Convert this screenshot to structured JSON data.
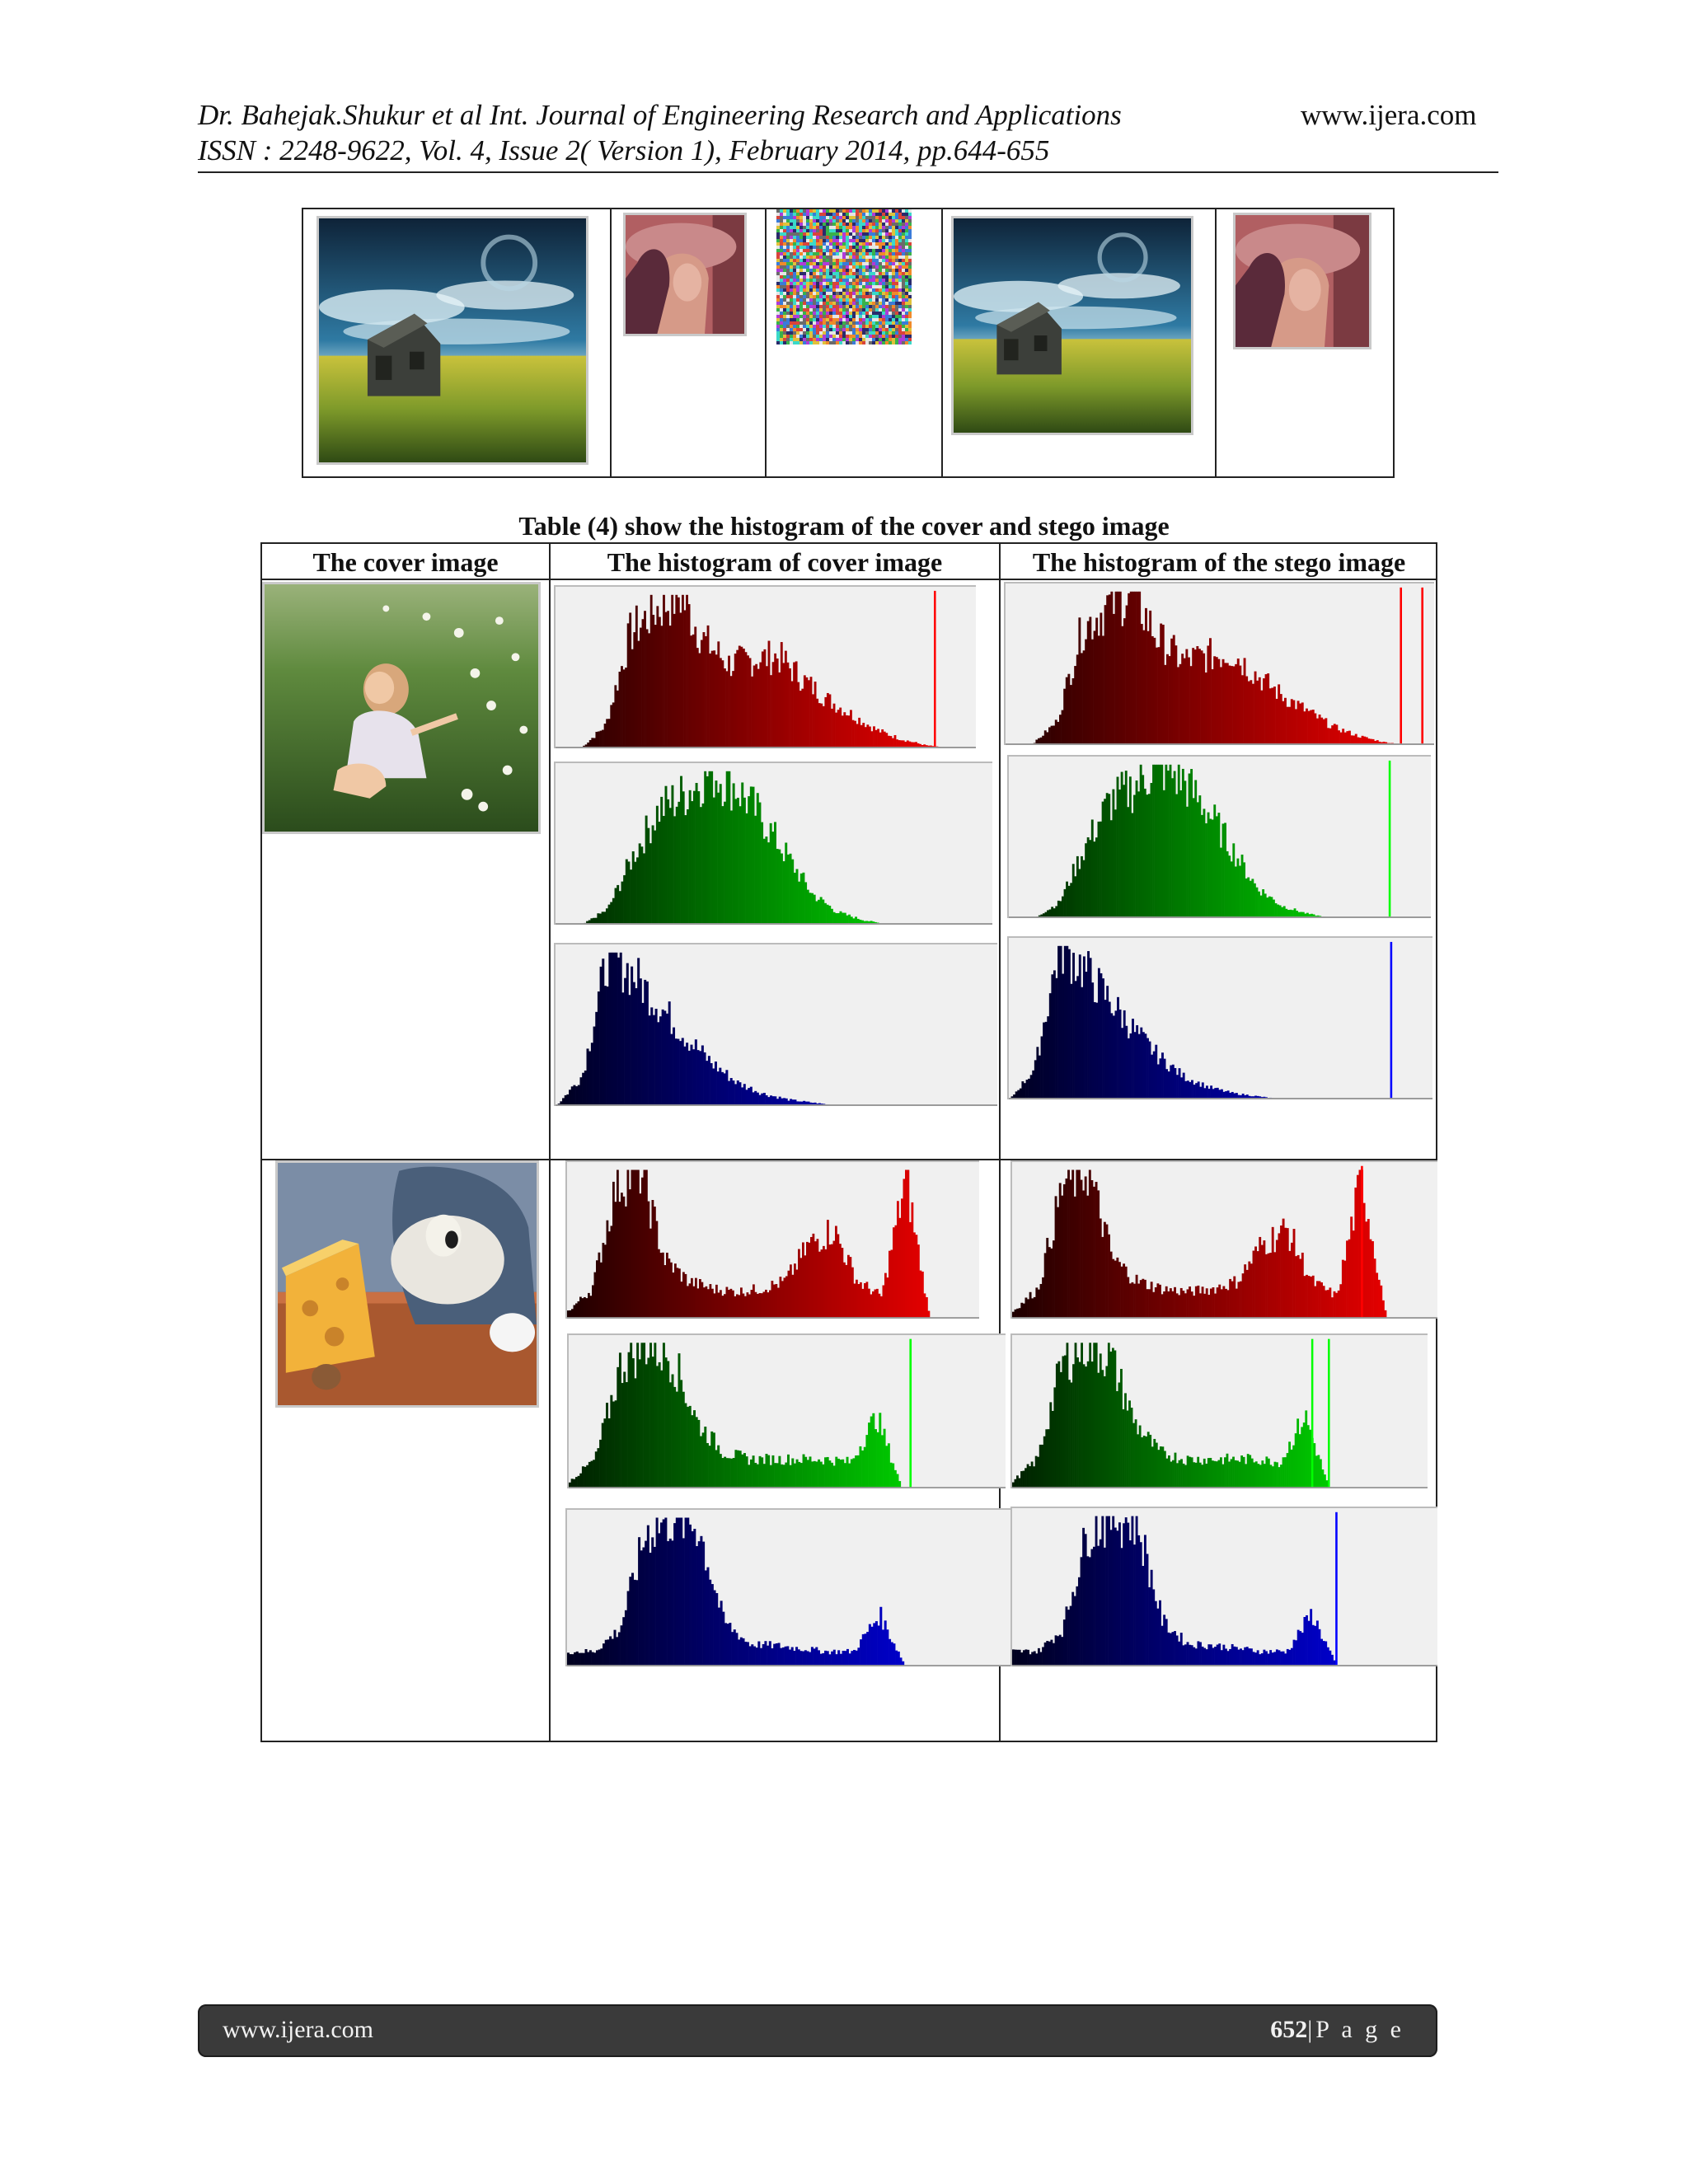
{
  "header": {
    "line1": "Dr. Bahejak.Shukur et al Int. Journal of Engineering Research and Applications",
    "line2": "ISSN : 2248-9622, Vol. 4, Issue 2( Version 1), February 2014, pp.644-655",
    "site": "www.ijera.com"
  },
  "image_row": {
    "items": [
      "cover-house-image",
      "lena-secret-image",
      "encrypted-noise-image",
      "stego-house-image",
      "recovered-lena-image"
    ]
  },
  "table": {
    "caption": "Table (4) show the histogram of the cover and stego image",
    "headers": [
      "The cover image",
      "The histogram of cover image",
      "The histogram of the stego image"
    ]
  },
  "chart_data": [
    {
      "type": "bar",
      "channel": "red",
      "row": "girl",
      "image": "cover",
      "profile": [
        0,
        0,
        0.15,
        0.75,
        0.9,
        1,
        0.7,
        0.55,
        0.58,
        0.6,
        0.45,
        0.32,
        0.22,
        0.12,
        0.06,
        0.02,
        0,
        0
      ],
      "spikes": [
        0.9
      ]
    },
    {
      "type": "bar",
      "channel": "red",
      "row": "girl",
      "image": "stego",
      "profile": [
        0,
        0,
        0.15,
        0.75,
        0.9,
        1,
        0.7,
        0.55,
        0.58,
        0.6,
        0.45,
        0.32,
        0.22,
        0.12,
        0.06,
        0.02,
        0,
        0
      ],
      "spikes": [
        0.92,
        0.97
      ]
    },
    {
      "type": "bar",
      "channel": "green",
      "row": "girl",
      "image": "cover",
      "profile": [
        0,
        0,
        0.1,
        0.45,
        0.75,
        0.85,
        1,
        0.9,
        0.7,
        0.45,
        0.2,
        0.08,
        0.03,
        0,
        0,
        0,
        0,
        0
      ],
      "spikes": []
    },
    {
      "type": "bar",
      "channel": "green",
      "row": "girl",
      "image": "stego",
      "profile": [
        0,
        0,
        0.1,
        0.45,
        0.75,
        0.85,
        1,
        0.9,
        0.7,
        0.45,
        0.2,
        0.08,
        0.03,
        0,
        0,
        0,
        0,
        0
      ],
      "spikes": [
        0.9
      ]
    },
    {
      "type": "bar",
      "channel": "blue",
      "row": "girl",
      "image": "cover",
      "profile": [
        0,
        0.2,
        1,
        0.85,
        0.65,
        0.45,
        0.28,
        0.15,
        0.08,
        0.04,
        0.02,
        0,
        0,
        0,
        0,
        0,
        0,
        0
      ],
      "spikes": []
    },
    {
      "type": "bar",
      "channel": "blue",
      "row": "girl",
      "image": "stego",
      "profile": [
        0,
        0.2,
        1,
        0.85,
        0.65,
        0.45,
        0.28,
        0.15,
        0.08,
        0.04,
        0.02,
        0,
        0,
        0,
        0,
        0,
        0,
        0
      ],
      "spikes": [
        0.9
      ]
    },
    {
      "type": "bar",
      "channel": "red",
      "row": "cartoon",
      "image": "cover",
      "profile": [
        0.05,
        0.2,
        0.9,
        1,
        0.4,
        0.25,
        0.2,
        0.18,
        0.2,
        0.25,
        0.5,
        0.6,
        0.25,
        0.15,
        0.95,
        0,
        0,
        0
      ],
      "spikes": []
    },
    {
      "type": "bar",
      "channel": "red",
      "row": "cartoon",
      "image": "stego",
      "profile": [
        0.05,
        0.2,
        0.9,
        1,
        0.4,
        0.25,
        0.2,
        0.18,
        0.2,
        0.25,
        0.5,
        0.6,
        0.25,
        0.15,
        0.95,
        0,
        0,
        0
      ],
      "spikes": [
        0.82
      ]
    },
    {
      "type": "bar",
      "channel": "green",
      "row": "cartoon",
      "image": "cover",
      "profile": [
        0.05,
        0.2,
        0.85,
        1,
        0.9,
        0.45,
        0.25,
        0.2,
        0.2,
        0.2,
        0.2,
        0.18,
        0.5,
        0,
        0,
        0,
        0,
        0
      ],
      "spikes": [
        0.78
      ]
    },
    {
      "type": "bar",
      "channel": "green",
      "row": "cartoon",
      "image": "stego",
      "profile": [
        0.05,
        0.2,
        0.85,
        1,
        0.9,
        0.45,
        0.25,
        0.2,
        0.2,
        0.2,
        0.2,
        0.18,
        0.5,
        0,
        0,
        0,
        0,
        0
      ],
      "spikes": [
        0.72,
        0.76
      ]
    },
    {
      "type": "bar",
      "channel": "blue",
      "row": "cartoon",
      "image": "cover",
      "profile": [
        0.1,
        0.1,
        0.25,
        0.9,
        1,
        0.95,
        0.3,
        0.15,
        0.14,
        0.12,
        0.1,
        0.1,
        0.35,
        0,
        0,
        0,
        0,
        0
      ],
      "spikes": []
    },
    {
      "type": "bar",
      "channel": "blue",
      "row": "cartoon",
      "image": "stego",
      "profile": [
        0.1,
        0.1,
        0.25,
        0.9,
        1,
        0.95,
        0.3,
        0.15,
        0.14,
        0.12,
        0.1,
        0.1,
        0.35,
        0,
        0,
        0,
        0,
        0
      ],
      "spikes": [
        0.76
      ]
    }
  ],
  "footer": {
    "site": "www.ijera.com",
    "page": "652",
    "suffix": "|P a g e"
  }
}
